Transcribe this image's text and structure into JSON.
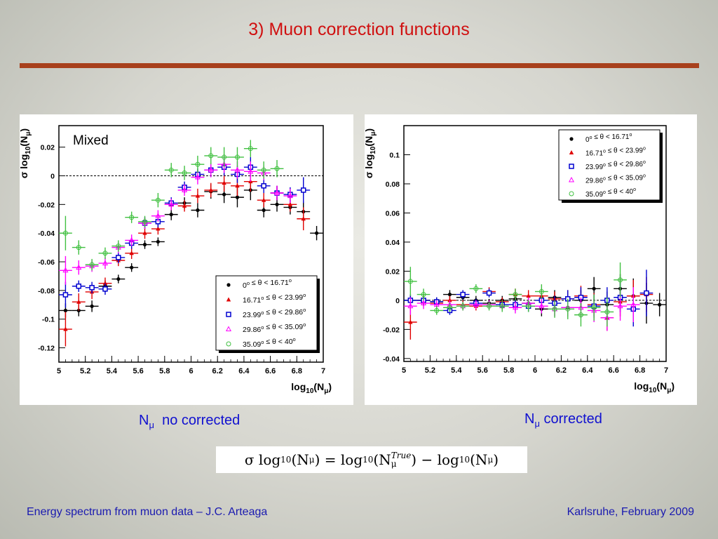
{
  "slide": {
    "title": "3) Muon correction functions",
    "caption_left": {
      "symbol": "N",
      "sub": "μ",
      "text": "no corrected"
    },
    "caption_right": {
      "symbol": "N",
      "sub": "μ",
      "text": "corrected"
    },
    "formula": {
      "lhs": "σ log",
      "lhs_sub": "10",
      "lhs_arg": "(N",
      "lhs_arg_sub": "μ",
      "lhs_close": ")",
      "eq": " = ",
      "t1": "log",
      "t1_sub": "10",
      "t1_arg": "(N",
      "t1_sup": "True",
      "t1_arg_sub": "μ",
      "t1_close": ")",
      "minus": " − ",
      "t2": "log",
      "t2_sub": "10",
      "t2_arg": "(N",
      "t2_arg_sub": "μ",
      "t2_close": ")"
    },
    "footer_left": "Energy spectrum from muon data – J.C. Arteaga",
    "footer_right": "Karlsruhe,  February 2009"
  },
  "chart_data": [
    {
      "type": "scatter",
      "annotation": "Mixed",
      "xlabel": {
        "main": "log",
        "sub": "10",
        "arg": "(N",
        "arg_sub": "μ",
        "close": ")"
      },
      "ylabel": {
        "pre": "σ log",
        "sub": "10",
        "arg": "(N",
        "arg_sub": "μ",
        "close": ")"
      },
      "xlim": [
        5,
        7
      ],
      "ylim": [
        -0.13,
        0.035
      ],
      "xticks": [
        "5",
        "5.2",
        "5.4",
        "5.6",
        "5.8",
        "6",
        "6.2",
        "6.4",
        "6.6",
        "6.8",
        "7"
      ],
      "yticks": [
        0.02,
        0,
        -0.02,
        -0.04,
        -0.06,
        -0.08,
        -0.1,
        -0.12
      ],
      "ytick_labels": [
        "0.02",
        "0",
        "-0.02",
        "-0.04",
        "-0.06",
        "-0.08",
        "-0.1",
        "-0.12"
      ],
      "reference_line": 0,
      "legend_position": "bottom-right",
      "series": [
        {
          "name": "0° ≤ θ < 16.71°",
          "color": "#000000",
          "marker": "dot",
          "x": [
            5.05,
            5.15,
            5.25,
            5.35,
            5.45,
            5.55,
            5.65,
            5.75,
            5.85,
            5.95,
            6.05,
            6.15,
            6.25,
            6.35,
            6.45,
            6.55,
            6.65,
            6.75,
            6.85,
            6.95
          ],
          "y": [
            -0.094,
            -0.094,
            -0.091,
            -0.077,
            -0.072,
            -0.064,
            -0.048,
            -0.046,
            -0.027,
            -0.019,
            -0.024,
            -0.011,
            -0.013,
            -0.015,
            -0.01,
            -0.024,
            -0.02,
            -0.022,
            -0.025,
            -0.04
          ],
          "xerr": 0.05,
          "yerr": [
            0.005,
            0.004,
            0.004,
            0.004,
            0.003,
            0.003,
            0.003,
            0.003,
            0.004,
            0.004,
            0.005,
            0.005,
            0.006,
            0.007,
            0.007,
            0.005,
            0.005,
            0.005,
            0.007,
            0.005
          ]
        },
        {
          "name": "16.71° ≤ θ < 23.99°",
          "color": "#e00000",
          "marker": "triangle",
          "x": [
            5.05,
            5.15,
            5.25,
            5.35,
            5.45,
            5.55,
            5.65,
            5.75,
            5.85,
            5.95,
            6.05,
            6.15,
            6.25,
            6.35,
            6.45,
            6.55,
            6.65,
            6.75,
            6.85
          ],
          "y": [
            -0.107,
            -0.088,
            -0.081,
            -0.075,
            -0.059,
            -0.054,
            -0.04,
            -0.037,
            -0.02,
            -0.021,
            -0.014,
            -0.01,
            -0.005,
            -0.007,
            -0.004,
            -0.017,
            -0.012,
            -0.02,
            -0.03
          ],
          "xerr": 0.05,
          "yerr": [
            0.012,
            0.006,
            0.005,
            0.004,
            0.004,
            0.004,
            0.004,
            0.004,
            0.004,
            0.004,
            0.005,
            0.005,
            0.006,
            0.007,
            0.007,
            0.005,
            0.005,
            0.005,
            0.008
          ]
        },
        {
          "name": "23.99° ≤ θ < 29.86°",
          "color": "#0000d0",
          "marker": "square",
          "x": [
            5.05,
            5.15,
            5.25,
            5.35,
            5.45,
            5.55,
            5.65,
            5.75,
            5.85,
            5.95,
            6.05,
            6.15,
            6.25,
            6.35,
            6.45,
            6.55,
            6.65,
            6.75,
            6.85
          ],
          "y": [
            -0.083,
            -0.077,
            -0.078,
            -0.079,
            -0.057,
            -0.047,
            -0.033,
            -0.032,
            -0.019,
            -0.008,
            0.001,
            0.004,
            0.006,
            0.001,
            0.006,
            -0.007,
            -0.012,
            -0.013,
            -0.01
          ],
          "xerr": 0.05,
          "yerr": [
            0.009,
            0.004,
            0.004,
            0.004,
            0.004,
            0.004,
            0.004,
            0.004,
            0.004,
            0.004,
            0.004,
            0.005,
            0.006,
            0.006,
            0.007,
            0.005,
            0.005,
            0.005,
            0.009
          ]
        },
        {
          "name": "29.86° ≤ θ < 35.09°",
          "color": "#ff00ff",
          "marker": "triangle-open",
          "x": [
            5.05,
            5.15,
            5.25,
            5.35,
            5.45,
            5.55,
            5.65,
            5.75,
            5.85,
            5.95,
            6.05,
            6.15,
            6.25,
            6.35,
            6.45,
            6.55,
            6.65,
            6.75
          ],
          "y": [
            -0.066,
            -0.064,
            -0.063,
            -0.061,
            -0.05,
            -0.045,
            -0.033,
            -0.028,
            -0.02,
            -0.01,
            -0.001,
            0.004,
            0.008,
            0.004,
            0.003,
            0.002,
            -0.012,
            -0.014
          ],
          "xerr": 0.05,
          "yerr": [
            0.01,
            0.005,
            0.004,
            0.004,
            0.004,
            0.004,
            0.004,
            0.004,
            0.004,
            0.004,
            0.005,
            0.005,
            0.006,
            0.006,
            0.007,
            0.005,
            0.005,
            0.005
          ]
        },
        {
          "name": "35.09° ≤ θ <   40°",
          "color": "#40c040",
          "marker": "circle-open",
          "x": [
            5.05,
            5.15,
            5.25,
            5.35,
            5.45,
            5.55,
            5.65,
            5.75,
            5.85,
            5.95,
            6.05,
            6.15,
            6.25,
            6.35,
            6.45,
            6.55,
            6.65
          ],
          "y": [
            -0.04,
            -0.05,
            -0.062,
            -0.054,
            -0.049,
            -0.029,
            -0.032,
            -0.017,
            0.004,
            0.002,
            0.008,
            0.014,
            0.013,
            0.013,
            0.019,
            0.004,
            0.005
          ],
          "xerr": 0.05,
          "yerr": [
            0.012,
            0.005,
            0.004,
            0.004,
            0.004,
            0.004,
            0.004,
            0.005,
            0.005,
            0.005,
            0.006,
            0.006,
            0.007,
            0.007,
            0.006,
            0.006,
            0.006
          ]
        }
      ]
    },
    {
      "type": "scatter",
      "xlabel": {
        "main": "log",
        "sub": "10",
        "arg": "(N",
        "arg_sub": "μ",
        "close": ")"
      },
      "ylabel": {
        "pre": "σ log",
        "sub": "10",
        "arg": "(N",
        "arg_sub": "μ",
        "close": ")"
      },
      "xlim": [
        5,
        7
      ],
      "ylim": [
        -0.042,
        0.12
      ],
      "xticks": [
        "5",
        "5.2",
        "5.4",
        "5.6",
        "5.8",
        "6",
        "6.2",
        "6.4",
        "6.6",
        "6.8",
        "7"
      ],
      "yticks": [
        0.1,
        0.08,
        0.06,
        0.04,
        0.02,
        0,
        -0.02,
        -0.04
      ],
      "ytick_labels": [
        "0.1",
        "0.08",
        "0.06",
        "0.04",
        "0.02",
        "0",
        "-0.02",
        "-0.04"
      ],
      "reference_line": 0,
      "legend_position": "top-right",
      "series": [
        {
          "name": "0° ≤ θ < 16.71°",
          "color": "#000000",
          "marker": "dot",
          "x": [
            5.05,
            5.15,
            5.25,
            5.35,
            5.45,
            5.55,
            5.65,
            5.75,
            5.85,
            5.95,
            6.05,
            6.15,
            6.25,
            6.35,
            6.45,
            6.55,
            6.65,
            6.75,
            6.85,
            6.95
          ],
          "y": [
            0,
            0,
            -0.001,
            0.004,
            0.002,
            0,
            -0.002,
            0,
            0.001,
            -0.002,
            -0.006,
            0.002,
            -0.005,
            0,
            0.008,
            -0.003,
            0.008,
            0.003,
            -0.002,
            -0.003
          ],
          "xerr": 0.05,
          "yerr": [
            0.004,
            0.003,
            0.003,
            0.003,
            0.003,
            0.003,
            0.003,
            0.003,
            0.004,
            0.004,
            0.005,
            0.005,
            0.006,
            0.007,
            0.008,
            0.009,
            0.01,
            0.012,
            0.014,
            0.008
          ]
        },
        {
          "name": "16.71° ≤ θ < 23.99°",
          "color": "#e00000",
          "marker": "triangle",
          "x": [
            5.05,
            5.15,
            5.25,
            5.35,
            5.45,
            5.55,
            5.65,
            5.75,
            5.85,
            5.95,
            6.05,
            6.15,
            6.25,
            6.35,
            6.45,
            6.55,
            6.65,
            6.75,
            6.85
          ],
          "y": [
            -0.015,
            0,
            -0.002,
            0,
            -0.003,
            -0.004,
            0.006,
            -0.001,
            0.004,
            0.003,
            0.003,
            0.001,
            0.001,
            0.003,
            -0.003,
            -0.012,
            -0.001,
            0.003,
            0.004
          ],
          "xerr": 0.05,
          "yerr": [
            0.012,
            0.004,
            0.003,
            0.003,
            0.003,
            0.003,
            0.003,
            0.003,
            0.004,
            0.004,
            0.005,
            0.005,
            0.006,
            0.007,
            0.008,
            0.009,
            0.01,
            0.011,
            0.012
          ]
        },
        {
          "name": "23.99° ≤ θ < 29.86°",
          "color": "#0000d0",
          "marker": "square",
          "x": [
            5.05,
            5.15,
            5.25,
            5.35,
            5.45,
            5.55,
            5.65,
            5.75,
            5.85,
            5.95,
            6.05,
            6.15,
            6.25,
            6.35,
            6.45,
            6.55,
            6.65,
            6.75,
            6.85
          ],
          "y": [
            0,
            0,
            -0.001,
            -0.007,
            0.004,
            -0.002,
            0.005,
            -0.003,
            -0.003,
            -0.004,
            0,
            -0.002,
            0.001,
            0.002,
            -0.004,
            0,
            0.002,
            -0.006,
            0.005
          ],
          "xerr": 0.05,
          "yerr": [
            0.004,
            0.003,
            0.003,
            0.003,
            0.003,
            0.003,
            0.003,
            0.003,
            0.004,
            0.004,
            0.005,
            0.005,
            0.006,
            0.007,
            0.008,
            0.009,
            0.01,
            0.012,
            0.016
          ]
        },
        {
          "name": "29.86° ≤ θ < 35.09°",
          "color": "#ff00ff",
          "marker": "triangle-open",
          "x": [
            5.05,
            5.15,
            5.25,
            5.35,
            5.45,
            5.55,
            5.65,
            5.75,
            5.85,
            5.95,
            6.05,
            6.15,
            6.25,
            6.35,
            6.45,
            6.55,
            6.65,
            6.75
          ],
          "y": [
            -0.004,
            -0.002,
            -0.003,
            -0.003,
            -0.004,
            -0.003,
            -0.003,
            -0.004,
            -0.005,
            -0.002,
            -0.004,
            -0.006,
            -0.005,
            -0.005,
            -0.007,
            -0.012,
            -0.004,
            -0.003
          ],
          "xerr": 0.05,
          "yerr": [
            0.006,
            0.004,
            0.003,
            0.003,
            0.003,
            0.003,
            0.003,
            0.003,
            0.004,
            0.004,
            0.005,
            0.005,
            0.006,
            0.007,
            0.008,
            0.009,
            0.01,
            0.012
          ]
        },
        {
          "name": "35.09° ≤ θ <   40°",
          "color": "#40c040",
          "marker": "circle-open",
          "x": [
            5.05,
            5.15,
            5.25,
            5.35,
            5.45,
            5.55,
            5.65,
            5.75,
            5.85,
            5.95,
            6.05,
            6.15,
            6.25,
            6.35,
            6.45,
            6.55,
            6.65
          ],
          "y": [
            0.013,
            0.004,
            -0.007,
            -0.005,
            -0.004,
            0.008,
            -0.004,
            -0.004,
            0.004,
            -0.004,
            0.006,
            -0.006,
            -0.006,
            -0.01,
            -0.005,
            -0.008,
            0.014
          ],
          "xerr": 0.05,
          "yerr": [
            0.01,
            0.004,
            0.003,
            0.003,
            0.003,
            0.003,
            0.003,
            0.004,
            0.004,
            0.004,
            0.005,
            0.006,
            0.007,
            0.008,
            0.009,
            0.01,
            0.012
          ]
        }
      ]
    }
  ]
}
